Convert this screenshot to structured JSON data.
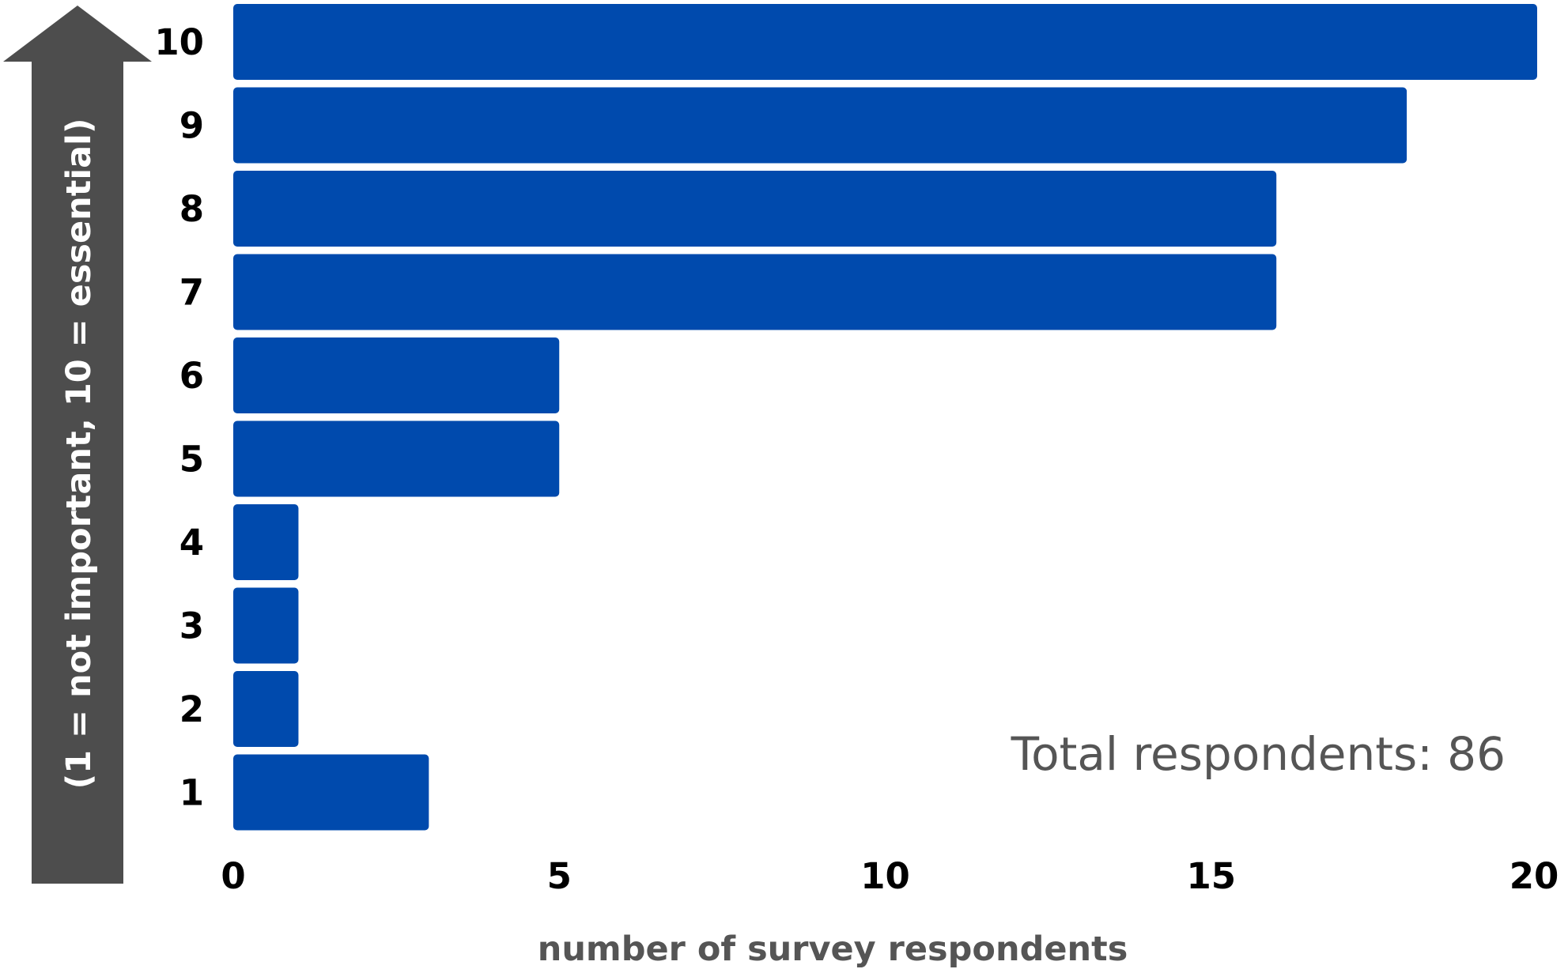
{
  "chart_data": {
    "type": "bar",
    "orientation": "horizontal",
    "categories": [
      "1",
      "2",
      "3",
      "4",
      "5",
      "6",
      "7",
      "8",
      "9",
      "10"
    ],
    "values": [
      3,
      1,
      1,
      1,
      5,
      5,
      16,
      16,
      18,
      20
    ],
    "xlabel": "number of survey respondents",
    "ylabel": "(1 = not important, 10 = essential)",
    "xlim": [
      0,
      20
    ],
    "xticks": [
      "0",
      "5",
      "10",
      "15",
      "20"
    ],
    "annotation": "Total respondents: 86",
    "grid": false,
    "legend": "none",
    "colors": {
      "bar": "#004aad",
      "arrow": "#4d4d4d",
      "axis_label": "#555555",
      "ticks": "#000000"
    }
  }
}
